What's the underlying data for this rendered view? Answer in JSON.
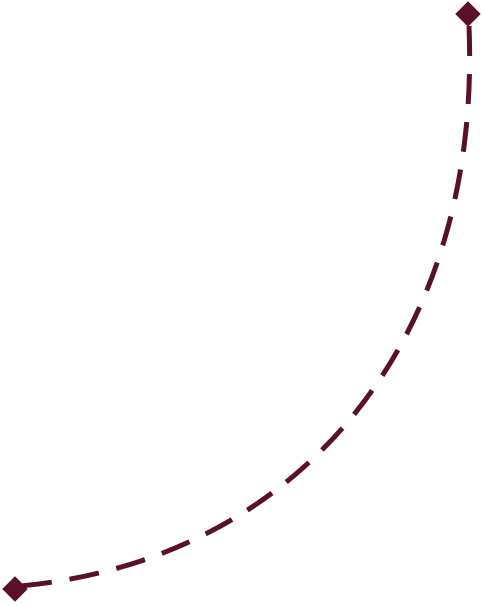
{
  "connector": {
    "style": "dashed-curve",
    "start_marker": "diamond",
    "end_marker": "diamond"
  },
  "colors": {
    "stroke": "#5a1028",
    "marker": "#5a1028",
    "background": "#ffffff"
  }
}
